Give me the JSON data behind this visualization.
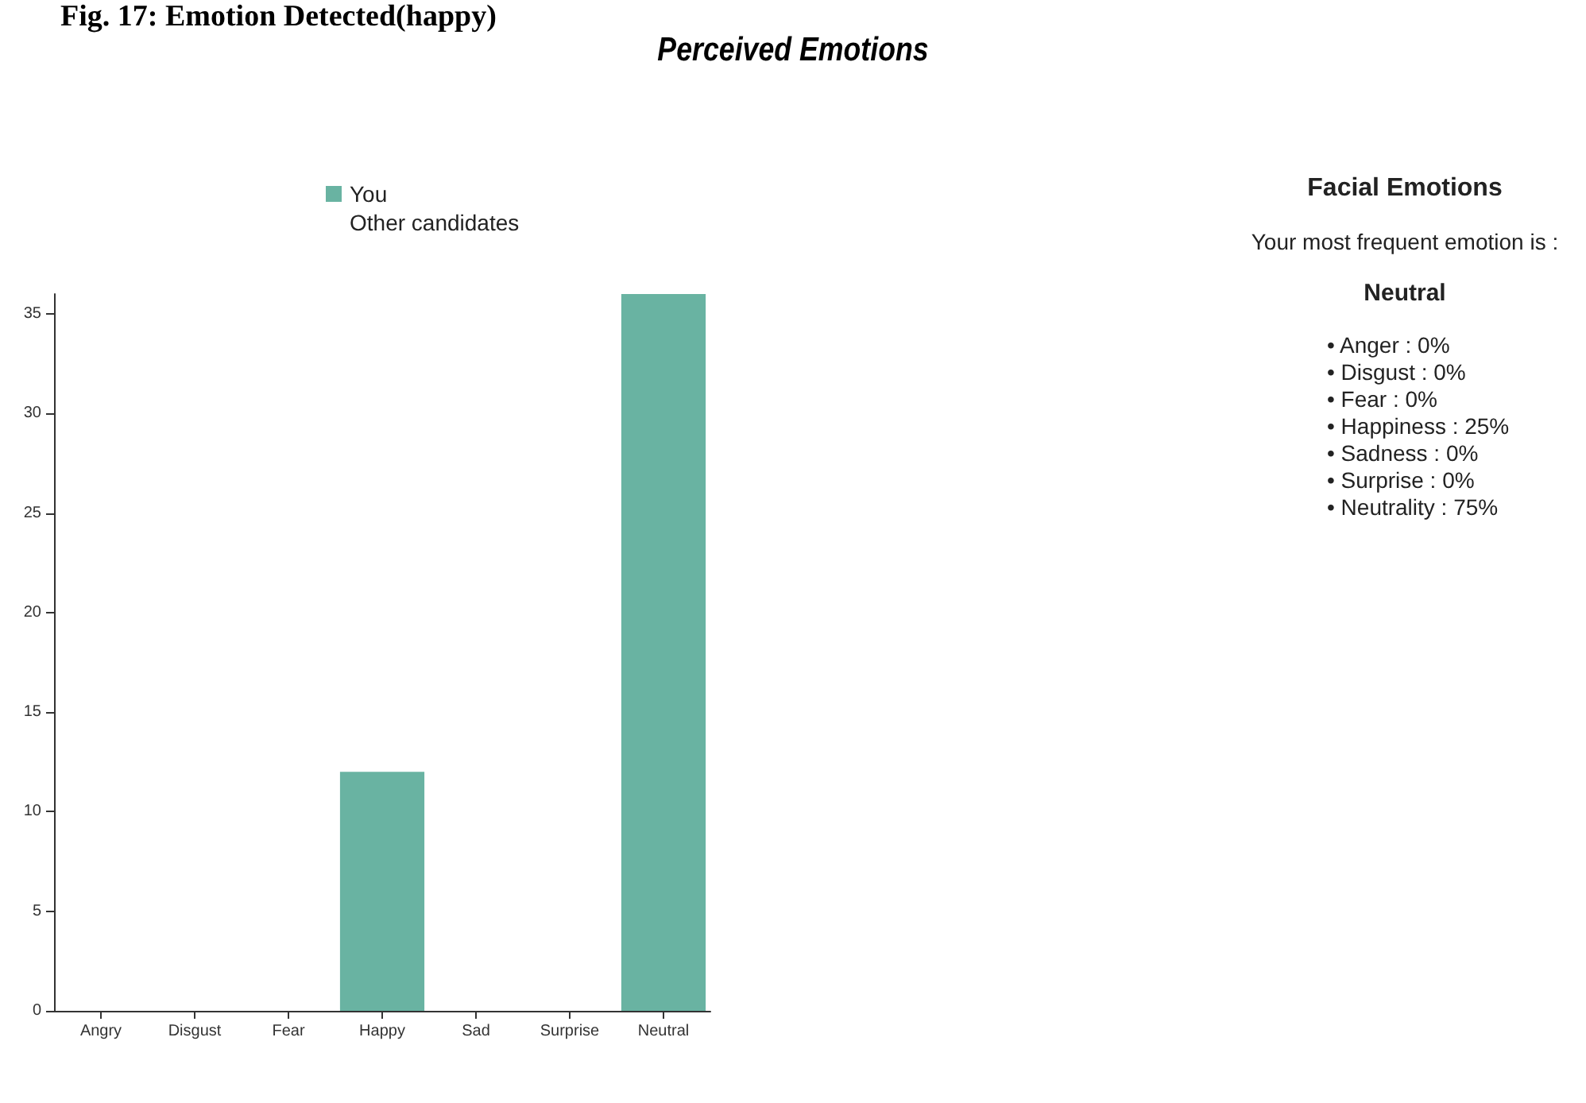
{
  "chart_data": [
    {
      "type": "bar",
      "title": "Perceived Emotions",
      "annotations": [
        "Fig. 17: Emotion Detected(happy)"
      ],
      "categories": [
        "Angry",
        "Disgust",
        "Fear",
        "Happy",
        "Sad",
        "Surprise",
        "Neutral"
      ],
      "series": [
        {
          "name": "You",
          "color": "#69b3a2",
          "values": [
            0,
            0,
            0,
            12,
            0,
            0,
            36
          ]
        },
        {
          "name": "Other candidates",
          "values": [
            null,
            null,
            null,
            null,
            null,
            null,
            null
          ]
        }
      ],
      "ylim": [
        0,
        36
      ],
      "yticks": [
        0,
        5,
        10,
        15,
        20,
        25,
        30,
        35
      ],
      "grid": false,
      "legend": "top"
    },
    {
      "type": "other",
      "title": "Facial Emotions",
      "annotations": [
        "Your most frequent emotion is :",
        "Neutral",
        "• Anger : 0%",
        "• Disgust : 0%",
        "• Fear : 0%",
        "• Happiness : 25%",
        "• Sadness : 0%",
        "• Surprise : 0%",
        "• Neutrality : 75%"
      ]
    }
  ]
}
